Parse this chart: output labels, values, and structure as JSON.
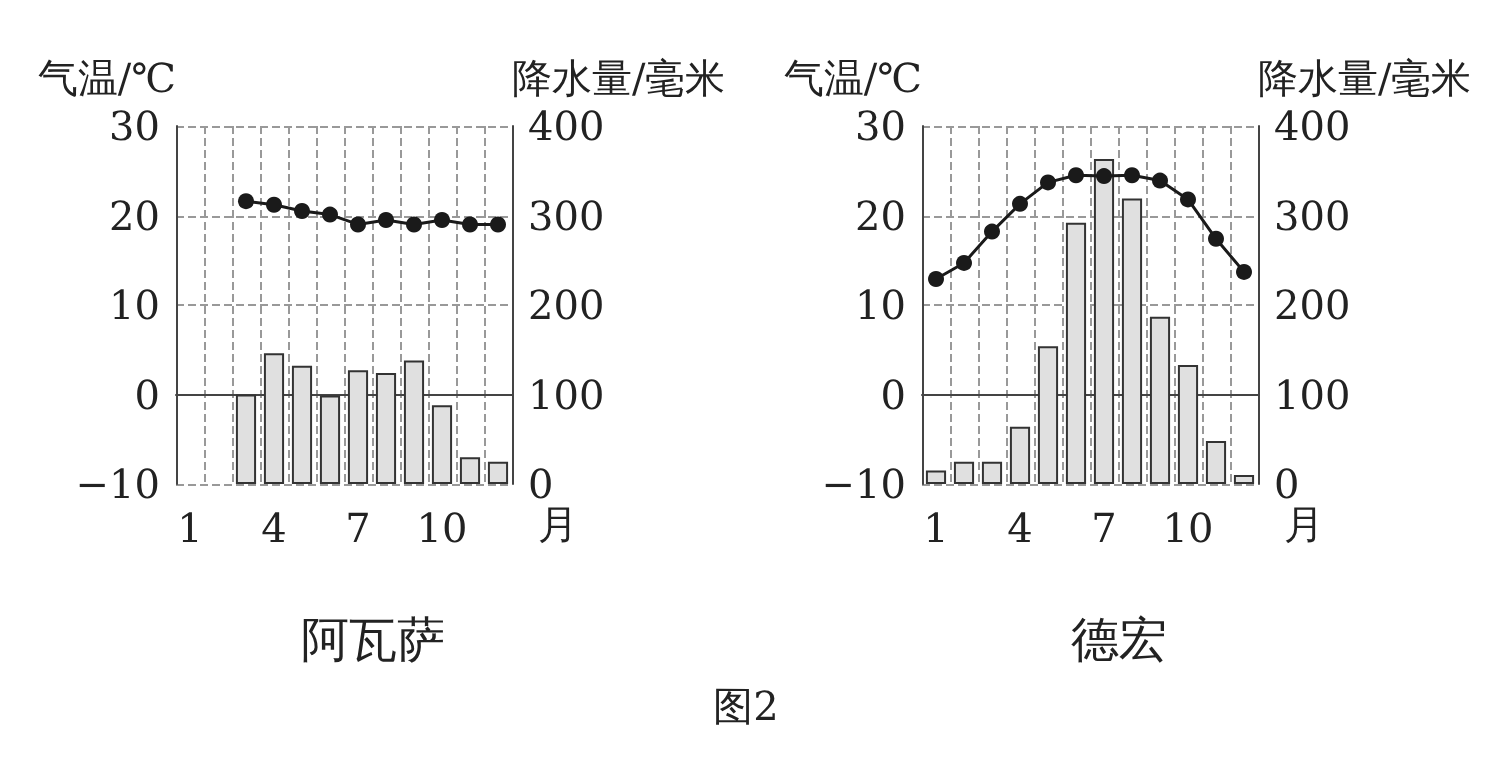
{
  "chart_data": [
    {
      "type": "bar",
      "title": "阿瓦萨",
      "ylabel": "气温/℃",
      "y2label": "降水量/毫米",
      "xlabel": "月",
      "annotations": [
        "图2"
      ],
      "categories": [
        "1",
        null,
        null,
        "4",
        null,
        null,
        "7",
        null,
        null,
        "10",
        null,
        null
      ],
      "series": [
        {
          "axis": "y2",
          "color": "#e0e0e0",
          "values": [
            null,
            null,
            100,
            146,
            132,
            99,
            127,
            124,
            138,
            88,
            30,
            25
          ]
        },
        {
          "type": "line",
          "color": "#1a1a1a",
          "marker": "circle",
          "values": [
            null,
            null,
            21.6,
            21.2,
            20.5,
            20.1,
            19.0,
            19.5,
            19.0,
            19.5,
            19.0,
            19.0
          ]
        }
      ],
      "ylim": [
        -10,
        30
      ],
      "yticks": [
        -10,
        0,
        10,
        20,
        30
      ],
      "y2lim": [
        0,
        400
      ],
      "y2ticks": [
        0,
        100,
        200,
        300,
        400
      ],
      "grid": true
    },
    {
      "type": "bar",
      "title": "德宏",
      "ylabel": "气温/℃",
      "y2label": "降水量/毫米",
      "xlabel": "月",
      "categories": [
        "1",
        null,
        null,
        "4",
        null,
        null,
        "7",
        null,
        null,
        "10",
        null,
        null
      ],
      "series": [
        {
          "axis": "y2",
          "color": "#e0e0e0",
          "values": [
            15,
            25,
            25,
            64,
            154,
            292,
            363,
            319,
            187,
            133,
            48,
            10
          ]
        },
        {
          "type": "line",
          "color": "#1a1a1a",
          "marker": "circle",
          "values": [
            12.9,
            14.7,
            18.2,
            21.3,
            23.7,
            24.5,
            24.4,
            24.5,
            23.9,
            21.8,
            17.4,
            13.7
          ]
        }
      ],
      "ylim": [
        -10,
        30
      ],
      "yticks": [
        -10,
        0,
        10,
        20,
        30
      ],
      "y2lim": [
        0,
        400
      ],
      "y2ticks": [
        0,
        100,
        200,
        300,
        400
      ],
      "grid": true
    }
  ]
}
